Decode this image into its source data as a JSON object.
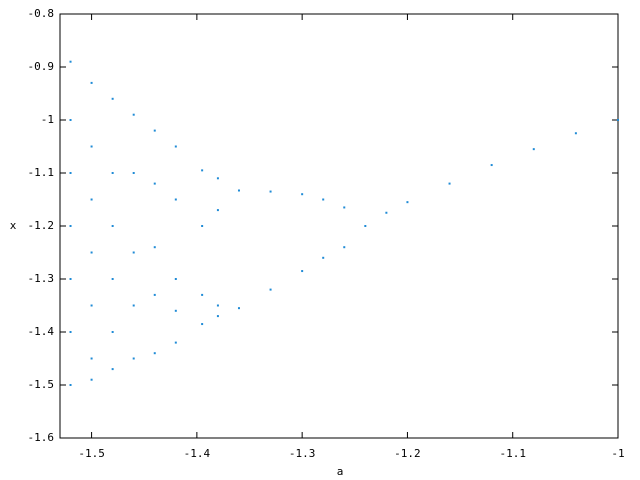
{
  "chart_data": {
    "type": "scatter",
    "xlabel": "a",
    "ylabel": "x",
    "color": "#1f8bd6",
    "xlim": [
      -1.53,
      -1
    ],
    "ylim": [
      -1.6,
      -0.8
    ],
    "xticks": [
      -1.5,
      -1.4,
      -1.3,
      -1.2,
      -1.1,
      -1
    ],
    "yticks": [
      -1.6,
      -1.5,
      -1.4,
      -1.3,
      -1.2,
      -1.1,
      -1,
      -0.9,
      -0.8
    ],
    "grid": false,
    "x": [
      -1.0,
      -1.04,
      -1.08,
      -1.12,
      -1.16,
      -1.2,
      -1.22,
      -1.24,
      -1.26,
      -1.28,
      -1.3,
      -1.33,
      -1.36,
      -1.26,
      -1.28,
      -1.3,
      -1.33,
      -1.36,
      -1.38,
      -1.38,
      -1.38,
      -1.38,
      -1.395,
      -1.395,
      -1.395,
      -1.395,
      -1.52,
      -1.52,
      -1.52,
      -1.52,
      -1.52,
      -1.52,
      -1.52,
      -1.5,
      -1.5,
      -1.5,
      -1.5,
      -1.5,
      -1.5,
      -1.5,
      -1.48,
      -1.48,
      -1.48,
      -1.48,
      -1.48,
      -1.48,
      -1.46,
      -1.46,
      -1.46,
      -1.46,
      -1.46,
      -1.44,
      -1.44,
      -1.44,
      -1.44,
      -1.44,
      -1.42,
      -1.42,
      -1.42,
      -1.42,
      -1.42
    ],
    "y": [
      -1.0,
      -1.025,
      -1.055,
      -1.085,
      -1.12,
      -1.155,
      -1.175,
      -1.2,
      -1.165,
      -1.15,
      -1.14,
      -1.135,
      -1.133,
      -1.24,
      -1.26,
      -1.285,
      -1.32,
      -1.355,
      -1.11,
      -1.17,
      -1.35,
      -1.37,
      -1.095,
      -1.2,
      -1.33,
      -1.385,
      -0.89,
      -1.0,
      -1.1,
      -1.2,
      -1.3,
      -1.4,
      -1.5,
      -0.93,
      -1.05,
      -1.15,
      -1.25,
      -1.35,
      -1.45,
      -1.49,
      -0.96,
      -1.1,
      -1.2,
      -1.3,
      -1.4,
      -1.47,
      -0.99,
      -1.1,
      -1.25,
      -1.35,
      -1.45,
      -1.02,
      -1.12,
      -1.24,
      -1.33,
      -1.44,
      -1.05,
      -1.15,
      -1.3,
      -1.36,
      -1.42
    ]
  }
}
